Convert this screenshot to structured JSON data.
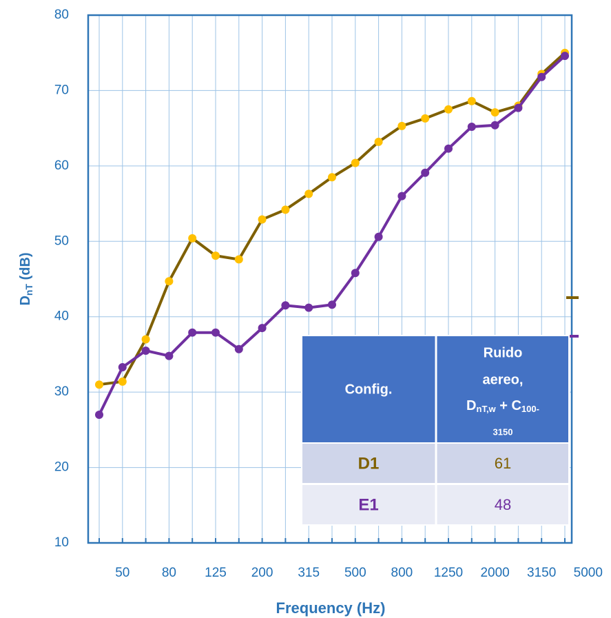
{
  "chart_data": {
    "type": "line",
    "xlabel": "Frequency (Hz)",
    "ylabel": [
      "D",
      "nT",
      " (dB)"
    ],
    "categories": [
      null,
      "50",
      null,
      "80",
      null,
      "125",
      null,
      "200",
      null,
      "315",
      null,
      "500",
      null,
      "800",
      null,
      "1250",
      null,
      "2000",
      null,
      "3150",
      null,
      "5000"
    ],
    "series": [
      {
        "color": "#7f6000",
        "marker_color": "#ffc000",
        "values": [
          31.0,
          31.4,
          37.0,
          44.7,
          50.4,
          48.1,
          47.6,
          52.9,
          54.2,
          56.3,
          58.5,
          60.4,
          63.2,
          65.3,
          66.3,
          67.5,
          68.6,
          67.1,
          68.0,
          72.2,
          75.0,
          null
        ]
      },
      {
        "color": "#7030a0",
        "marker_color": "#7030a0",
        "values": [
          27.0,
          33.3,
          35.5,
          34.8,
          37.9,
          37.9,
          35.7,
          38.5,
          41.5,
          41.2,
          41.6,
          45.8,
          50.6,
          56.0,
          59.1,
          62.3,
          65.2,
          65.4,
          67.7,
          71.8,
          74.6,
          null
        ]
      }
    ],
    "ylim": [
      10,
      80
    ],
    "yticks": [
      10,
      20,
      30,
      40,
      50,
      60,
      70,
      80
    ],
    "grid": true
  },
  "table": {
    "header": [
      "Config.",
      [
        "Ruido",
        "aereo,",
        "D",
        "nT,w",
        " + C",
        "100-",
        "3150"
      ]
    ],
    "rows": [
      [
        "D1",
        61
      ],
      [
        "E1",
        48
      ]
    ]
  }
}
